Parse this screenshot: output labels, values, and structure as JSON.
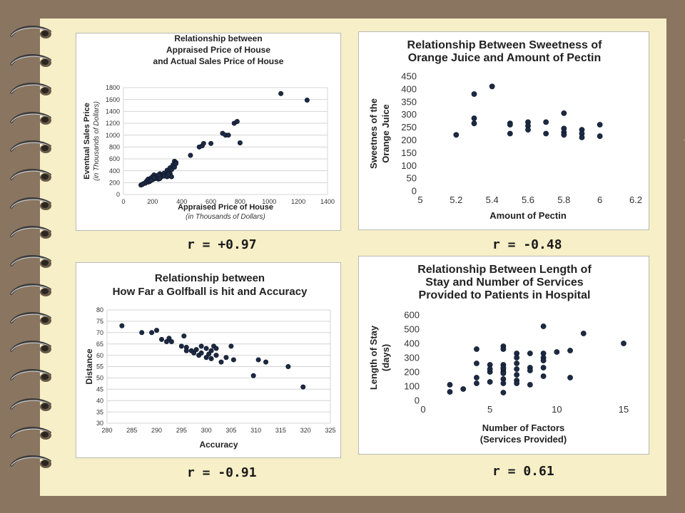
{
  "background_color": "#8a7560",
  "paper_color": "#f6efc7",
  "ring_count": 16,
  "r_labels": [
    "r = +0.97",
    "r = -0.48",
    "r = -0.91",
    "r = 0.61"
  ],
  "chart_data": [
    {
      "type": "scatter",
      "title_lines": [
        "Relationship between",
        "Appraised Price of House",
        "and Actual Sales Price of House"
      ],
      "xlabel": "Appraised Price of House",
      "xlabel_sub": "(in Thousands of Dollars)",
      "ylabel": "Eventual Sales Price",
      "ylabel_sub": "(in Thousands of Dollars)",
      "xlim": [
        0,
        1400
      ],
      "ylim": [
        0,
        1800
      ],
      "xticks": [
        "0",
        "200",
        "400",
        "600",
        "800",
        "1000",
        "1200",
        "1400"
      ],
      "yticks": [
        "0",
        "200",
        "400",
        "600",
        "800",
        "1000",
        "1200",
        "1400",
        "1600",
        "1800"
      ],
      "grid": true,
      "x": [
        120,
        135,
        150,
        160,
        170,
        180,
        190,
        200,
        210,
        220,
        230,
        240,
        250,
        270,
        280,
        300,
        310,
        320,
        330,
        340,
        350,
        360,
        150,
        170,
        200,
        230,
        260,
        290,
        320,
        350,
        180,
        210,
        240,
        280,
        300,
        330,
        360,
        460,
        520,
        540,
        550,
        600,
        680,
        700,
        720,
        760,
        780,
        800,
        1080,
        1260,
        130,
        190,
        250,
        310
      ],
      "y": [
        160,
        180,
        200,
        230,
        260,
        220,
        280,
        300,
        330,
        270,
        310,
        260,
        350,
        330,
        360,
        410,
        380,
        450,
        420,
        500,
        560,
        540,
        190,
        210,
        250,
        290,
        300,
        320,
        350,
        460,
        230,
        280,
        330,
        310,
        300,
        300,
        520,
        660,
        800,
        820,
        860,
        860,
        1030,
        1000,
        1000,
        1200,
        1230,
        870,
        1700,
        1590,
        170,
        240,
        270,
        340
      ]
    },
    {
      "type": "scatter",
      "title_lines": [
        "Relationship Between Sweetness of",
        "Orange Juice and Amount of Pectin"
      ],
      "xlabel": "Amount of Pectin",
      "ylabel_lines": [
        "Sweetnes of the",
        "Orange Juice"
      ],
      "xlim": [
        5,
        6.2
      ],
      "ylim": [
        0,
        450
      ],
      "xticks": [
        "5",
        "5.2",
        "5.4",
        "5.6",
        "5.8",
        "6",
        "6.2"
      ],
      "yticks": [
        "0",
        "50",
        "100",
        "150",
        "200",
        "250",
        "300",
        "350",
        "400",
        "450"
      ],
      "grid": false,
      "x": [
        5.2,
        5.3,
        5.3,
        5.3,
        5.4,
        5.5,
        5.5,
        5.5,
        5.6,
        5.6,
        5.6,
        5.7,
        5.7,
        5.8,
        5.8,
        5.8,
        5.8,
        5.9,
        5.9,
        5.9,
        6,
        6
      ],
      "y": [
        220,
        380,
        285,
        265,
        410,
        265,
        260,
        225,
        270,
        255,
        240,
        270,
        225,
        305,
        245,
        230,
        220,
        240,
        225,
        210,
        260,
        215
      ]
    },
    {
      "type": "scatter",
      "title_lines": [
        "Relationship between",
        "How Far a Golfball is hit and Accuracy"
      ],
      "xlabel": "Accuracy",
      "ylabel": "Distance",
      "xlim": [
        280,
        325
      ],
      "ylim": [
        30,
        80
      ],
      "xticks": [
        "280",
        "285",
        "290",
        "295",
        "300",
        "305",
        "310",
        "315",
        "320",
        "325"
      ],
      "yticks": [
        "30",
        "35",
        "40",
        "45",
        "50",
        "55",
        "60",
        "65",
        "70",
        "75",
        "80"
      ],
      "grid": true,
      "x": [
        283,
        287,
        289,
        290,
        291,
        292,
        292.5,
        293,
        295,
        295.5,
        296,
        296,
        297,
        297.5,
        298,
        298.5,
        299,
        299,
        300,
        300,
        300.5,
        301,
        301,
        301.5,
        302,
        302,
        303,
        304,
        305,
        305.5,
        309.5,
        310.5,
        312,
        316.5,
        319.5
      ],
      "y": [
        73,
        70,
        70,
        71,
        67,
        66,
        67.5,
        66,
        64,
        68.5,
        63.5,
        62,
        62,
        61,
        62.5,
        60,
        64,
        61,
        63,
        59,
        60.5,
        62,
        58.5,
        64,
        63,
        60,
        57,
        59,
        64,
        58,
        51,
        58,
        57,
        55,
        46
      ]
    },
    {
      "type": "scatter",
      "title_lines": [
        "Relationship Between Length of",
        "Stay and Number of Services",
        "Provided to Patients in Hospital"
      ],
      "xlabel_lines": [
        "Number of Factors",
        "(Services Provided)"
      ],
      "ylabel_lines": [
        "Length of Stay",
        "(days)"
      ],
      "xlim": [
        0,
        15
      ],
      "ylim": [
        0,
        600
      ],
      "xticks": [
        "0",
        "5",
        "10",
        "15"
      ],
      "yticks": [
        "0",
        "100",
        "200",
        "300",
        "400",
        "500",
        "600"
      ],
      "grid": false,
      "x": [
        2,
        2,
        3,
        4,
        4,
        4,
        4,
        5,
        5,
        5,
        5,
        6,
        6,
        6,
        6,
        6,
        6,
        6,
        6,
        6,
        6,
        7,
        7,
        7,
        7,
        7,
        7,
        7,
        8,
        8,
        8,
        8,
        9,
        9,
        9,
        9,
        9,
        9,
        10,
        11,
        11,
        12,
        15
      ],
      "y": [
        110,
        60,
        80,
        360,
        260,
        160,
        120,
        250,
        200,
        130,
        220,
        380,
        360,
        250,
        220,
        200,
        150,
        120,
        55,
        230,
        190,
        330,
        300,
        260,
        220,
        180,
        140,
        120,
        330,
        230,
        210,
        110,
        520,
        330,
        300,
        280,
        230,
        170,
        340,
        350,
        160,
        470,
        400
      ]
    }
  ]
}
